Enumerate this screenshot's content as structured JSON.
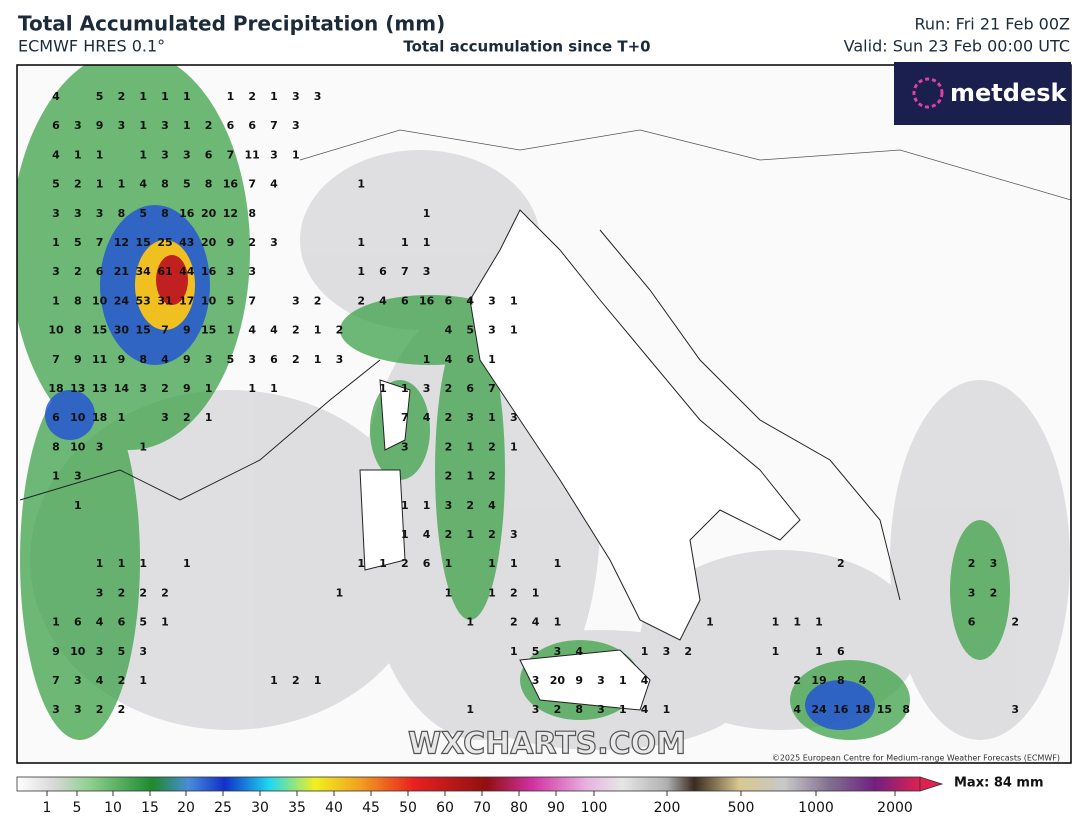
{
  "header": {
    "title": "Total Accumulated Precipitation (mm)",
    "model": "ECMWF HRES 0.1°",
    "subtitle": "Total accumulation since T+0",
    "run": "Run: Fri 21 Feb 00Z",
    "valid": "Valid: Sun 23 Feb 00:00 UTC"
  },
  "logo": "metdesk",
  "watermark": "WXCHARTS.COM",
  "copyright": "©2025 European Centre for Medium-range Weather Forecasts (ECMWF)",
  "grid_values": [
    [
      4,
      null,
      5,
      2,
      1,
      1,
      1,
      null,
      1,
      2,
      1,
      3,
      3
    ],
    [
      6,
      3,
      9,
      3,
      1,
      3,
      1,
      2,
      6,
      6,
      7,
      3
    ],
    [
      4,
      1,
      1,
      null,
      1,
      3,
      3,
      6,
      7,
      11,
      3,
      1
    ],
    [
      5,
      2,
      1,
      1,
      4,
      8,
      5,
      8,
      16,
      7,
      4,
      null,
      null,
      null,
      1
    ],
    [
      3,
      3,
      3,
      8,
      5,
      8,
      16,
      20,
      12,
      8,
      null,
      null,
      null,
      null,
      null,
      null,
      null,
      1
    ],
    [
      1,
      5,
      7,
      12,
      15,
      25,
      43,
      20,
      9,
      2,
      3,
      null,
      null,
      null,
      1,
      null,
      1,
      1
    ],
    [
      3,
      2,
      6,
      21,
      34,
      61,
      44,
      16,
      3,
      3,
      null,
      null,
      null,
      null,
      1,
      6,
      7,
      3
    ],
    [
      1,
      8,
      10,
      24,
      53,
      31,
      17,
      10,
      5,
      7,
      null,
      3,
      2,
      null,
      2,
      4,
      6,
      16,
      6,
      4,
      3,
      1
    ],
    [
      10,
      8,
      15,
      30,
      15,
      7,
      9,
      15,
      1,
      4,
      4,
      2,
      1,
      2,
      null,
      null,
      null,
      null,
      4,
      5,
      3,
      1
    ],
    [
      7,
      9,
      11,
      9,
      8,
      4,
      9,
      3,
      5,
      3,
      6,
      2,
      1,
      3,
      null,
      null,
      null,
      1,
      4,
      6,
      1
    ],
    [
      18,
      13,
      13,
      14,
      3,
      2,
      9,
      1,
      null,
      1,
      1,
      null,
      null,
      null,
      null,
      1,
      1,
      3,
      2,
      6,
      7
    ],
    [
      6,
      10,
      18,
      1,
      null,
      3,
      2,
      1,
      null,
      null,
      null,
      null,
      null,
      null,
      null,
      null,
      7,
      4,
      2,
      3,
      1,
      3
    ],
    [
      8,
      10,
      3,
      null,
      1,
      null,
      null,
      null,
      null,
      null,
      null,
      null,
      null,
      null,
      null,
      null,
      3,
      null,
      2,
      1,
      2,
      1
    ],
    [
      1,
      3,
      null,
      null,
      null,
      null,
      null,
      null,
      null,
      null,
      null,
      null,
      null,
      null,
      null,
      null,
      null,
      null,
      2,
      1,
      2
    ],
    [
      null,
      1,
      null,
      null,
      null,
      null,
      null,
      null,
      null,
      null,
      null,
      null,
      null,
      null,
      null,
      null,
      1,
      1,
      3,
      2,
      4
    ],
    [
      null,
      null,
      null,
      null,
      null,
      null,
      null,
      null,
      null,
      null,
      null,
      null,
      null,
      null,
      null,
      null,
      1,
      4,
      2,
      1,
      2,
      3
    ],
    [
      null,
      null,
      1,
      1,
      1,
      null,
      1,
      null,
      null,
      null,
      null,
      null,
      null,
      null,
      1,
      1,
      2,
      6,
      1,
      null,
      1,
      1,
      null,
      1,
      null,
      null,
      null,
      null,
      null,
      null,
      null,
      null,
      null,
      null,
      null,
      null,
      2,
      null,
      null,
      null,
      null,
      null,
      2,
      3
    ],
    [
      null,
      null,
      3,
      2,
      2,
      2,
      null,
      null,
      null,
      null,
      null,
      null,
      null,
      1,
      null,
      null,
      null,
      null,
      1,
      null,
      1,
      2,
      1,
      null,
      null,
      null,
      null,
      null,
      null,
      null,
      null,
      null,
      null,
      null,
      null,
      null,
      null,
      null,
      null,
      null,
      null,
      null,
      3,
      2
    ],
    [
      1,
      6,
      4,
      6,
      5,
      1,
      null,
      null,
      null,
      null,
      null,
      null,
      null,
      null,
      null,
      null,
      null,
      null,
      null,
      1,
      null,
      2,
      4,
      1,
      null,
      null,
      null,
      null,
      null,
      null,
      1,
      null,
      null,
      1,
      1,
      1,
      null,
      null,
      null,
      null,
      null,
      null,
      6,
      null,
      2
    ],
    [
      9,
      10,
      3,
      5,
      3,
      null,
      null,
      null,
      null,
      null,
      null,
      null,
      null,
      null,
      null,
      null,
      null,
      null,
      null,
      null,
      null,
      1,
      5,
      3,
      4,
      null,
      null,
      1,
      3,
      2,
      null,
      null,
      null,
      1,
      null,
      1,
      6
    ],
    [
      7,
      3,
      4,
      2,
      1,
      null,
      null,
      null,
      null,
      null,
      1,
      2,
      1,
      null,
      null,
      null,
      null,
      null,
      null,
      null,
      null,
      null,
      3,
      20,
      9,
      3,
      1,
      4,
      null,
      null,
      null,
      null,
      null,
      null,
      2,
      19,
      8,
      4
    ],
    [
      3,
      3,
      2,
      2,
      null,
      null,
      null,
      null,
      null,
      null,
      null,
      null,
      null,
      null,
      null,
      null,
      null,
      null,
      null,
      1,
      null,
      null,
      3,
      2,
      8,
      3,
      1,
      4,
      1,
      null,
      null,
      null,
      null,
      null,
      4,
      24,
      16,
      18,
      15,
      8,
      null,
      null,
      null,
      null,
      3
    ]
  ],
  "colorbar": {
    "ticks": [
      1,
      5,
      10,
      15,
      20,
      25,
      30,
      35,
      40,
      45,
      50,
      60,
      70,
      80,
      90,
      100,
      200,
      500,
      1000,
      2000
    ],
    "max_label": "Max: 84 mm"
  }
}
